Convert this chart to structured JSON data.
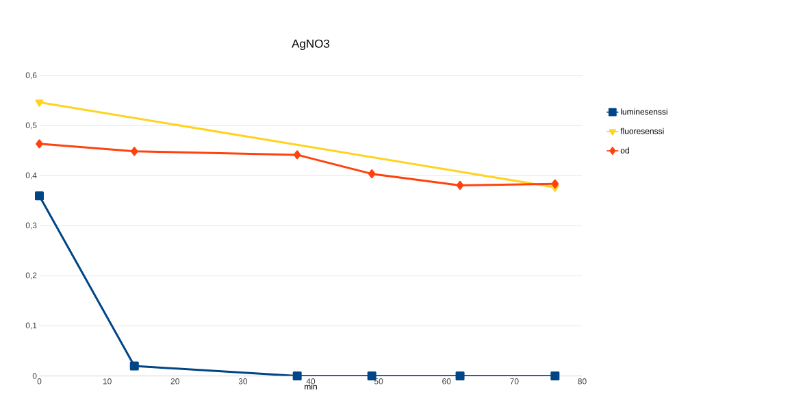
{
  "chart_data": {
    "type": "line",
    "title": "AgNO3",
    "xlabel": "min",
    "xlim": [
      0,
      80
    ],
    "xticks": [
      0,
      10,
      20,
      30,
      40,
      50,
      60,
      70,
      80
    ],
    "ylim": [
      0,
      0.6
    ],
    "yticks": [
      {
        "value": 0,
        "label": "0"
      },
      {
        "value": 0.1,
        "label": "0,1"
      },
      {
        "value": 0.2,
        "label": "0,2"
      },
      {
        "value": 0.3,
        "label": "0,3"
      },
      {
        "value": 0.4,
        "label": "0,4"
      },
      {
        "value": 0.5,
        "label": "0,5"
      },
      {
        "value": 0.6,
        "label": "0,6"
      }
    ],
    "grid": "y",
    "legend": "right",
    "series": [
      {
        "name": "luminesenssi",
        "color": "#004586",
        "marker": "square",
        "x": [
          0,
          14,
          38,
          49,
          62,
          76
        ],
        "values": [
          0.36,
          0.02,
          0,
          0,
          0,
          0
        ]
      },
      {
        "name": "fluoresenssi",
        "color": "#ffd320",
        "marker": "triangle",
        "x": [
          0,
          76
        ],
        "values": [
          0.547,
          0.377
        ]
      },
      {
        "name": "od",
        "color": "#ff420e",
        "marker": "diamond",
        "x": [
          0,
          14,
          38,
          49,
          62,
          76
        ],
        "values": [
          0.464,
          0.449,
          0.442,
          0.404,
          0.381,
          0.384
        ]
      }
    ]
  }
}
